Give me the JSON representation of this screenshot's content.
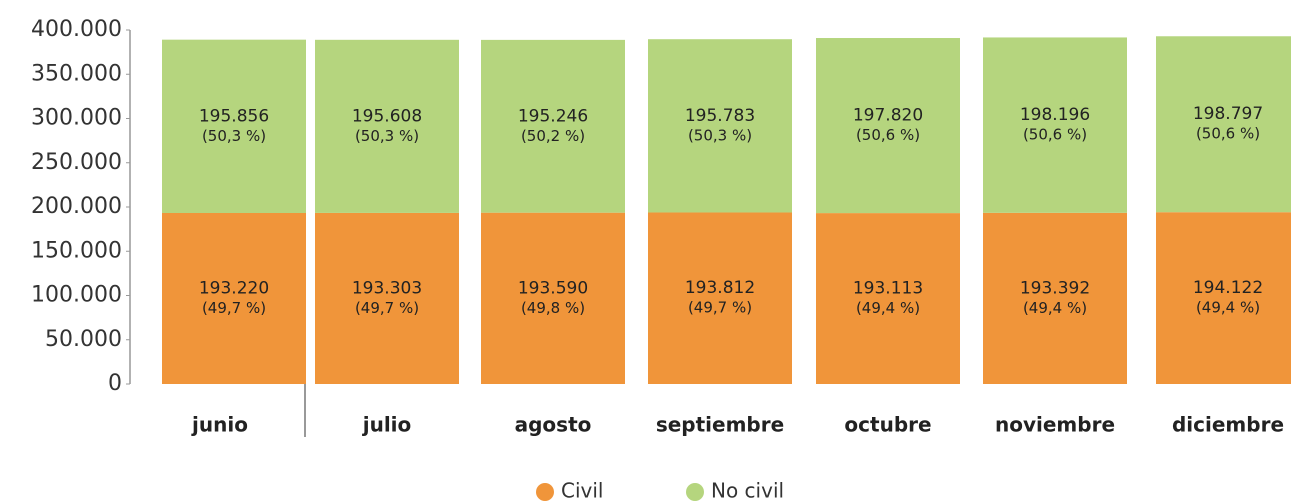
{
  "chart_data": {
    "type": "stacked_bar",
    "categories": [
      "junio",
      "julio",
      "agosto",
      "septiembre",
      "octubre",
      "noviembre",
      "diciembre"
    ],
    "series": [
      {
        "name": "Civil",
        "color": "#f0953a",
        "values": [
          193220,
          193303,
          193590,
          193812,
          193113,
          193392,
          194122
        ],
        "value_labels": [
          "193.220",
          "193.303",
          "193.590",
          "193.812",
          "193.113",
          "193.392",
          "194.122"
        ],
        "share_labels": [
          "(49,7 %)",
          "(49,7 %)",
          "(49,8 %)",
          "(49,7 %)",
          "(49,4 %)",
          "(49,4 %)",
          "(49,4 %)"
        ]
      },
      {
        "name": "No civil",
        "color": "#b5d57e",
        "values": [
          195856,
          195608,
          195246,
          195783,
          197820,
          198196,
          198797
        ],
        "value_labels": [
          "195.856",
          "195.608",
          "195.246",
          "195.783",
          "197.820",
          "198.196",
          "198.797"
        ],
        "share_labels": [
          "(50,3 %)",
          "(50,3 %)",
          "(50,2 %)",
          "(50,3 %)",
          "(50,6 %)",
          "(50,6 %)",
          "(50,6 %)"
        ]
      }
    ],
    "ylim": [
      0,
      400000
    ],
    "yticks": [
      0,
      {
        "value": 50000,
        "label": "50.000"
      },
      {
        "value": 100000,
        "label": "100.000"
      },
      {
        "value": 150000,
        "label": "150.000"
      },
      {
        "value": 200000,
        "label": "200.000"
      },
      {
        "value": 250000,
        "label": "250.000"
      },
      {
        "value": 300000,
        "label": "300.000"
      },
      {
        "value": 350000,
        "label": "350.000"
      },
      {
        "value": 400000,
        "label": "400.000"
      }
    ]
  }
}
